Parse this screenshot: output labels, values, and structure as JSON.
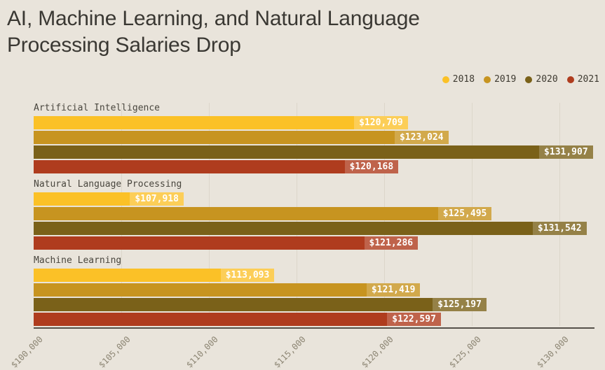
{
  "title": {
    "line1": "AI, Machine Learning, and Natural Language",
    "line2": "Processing Salaries Drop",
    "full": "AI, Machine Learning, and Natural Language Processing Salaries Drop"
  },
  "chart_data": {
    "type": "bar",
    "orientation": "horizontal",
    "title": "AI, Machine Learning, and Natural Language Processing Salaries Drop",
    "categories": [
      "Artificial Intelligence",
      "Natural Language Processing",
      "Machine Learning"
    ],
    "series": [
      {
        "name": "2018",
        "color": "#FBC127",
        "label_bg": "#FCCE58",
        "values": [
          120709,
          107918,
          113093
        ],
        "labels": [
          "$120,709",
          "$107,918",
          "$113,093"
        ]
      },
      {
        "name": "2019",
        "color": "#C79420",
        "label_bg": "#D2A94C",
        "values": [
          123024,
          125495,
          121419
        ],
        "labels": [
          "$123,024",
          "$125,495",
          "$121,419"
        ]
      },
      {
        "name": "2020",
        "color": "#7A6119",
        "label_bg": "#958147",
        "values": [
          131907,
          131542,
          125197
        ],
        "labels": [
          "$131,907",
          "$131,542",
          "$125,197"
        ]
      },
      {
        "name": "2021",
        "color": "#AF3C1E",
        "label_bg": "#BF634B",
        "values": [
          120168,
          121286,
          122597
        ],
        "labels": [
          "$120,168",
          "$121,286",
          "$122,597"
        ]
      }
    ],
    "xaxis": {
      "min": 100000,
      "max": 132000,
      "grid": true,
      "ticks": [
        {
          "value": 100000,
          "label": "$100,000"
        },
        {
          "value": 105000,
          "label": "$105,000"
        },
        {
          "value": 110000,
          "label": "$110,000"
        },
        {
          "value": 115000,
          "label": "$115,000"
        },
        {
          "value": 120000,
          "label": "$120,000"
        },
        {
          "value": 125000,
          "label": "$125,000"
        },
        {
          "value": 130000,
          "label": "$130,000"
        }
      ]
    },
    "legend_position": "top-right",
    "value_label_color": "#FFFFFF"
  },
  "colors": {
    "background": "#E9E4DB",
    "title_text": "#3A3833",
    "category_label": "#49463E",
    "tick_label": "#8C8573",
    "axis_line": "#56514A",
    "gridline": "#DCD6CA"
  }
}
